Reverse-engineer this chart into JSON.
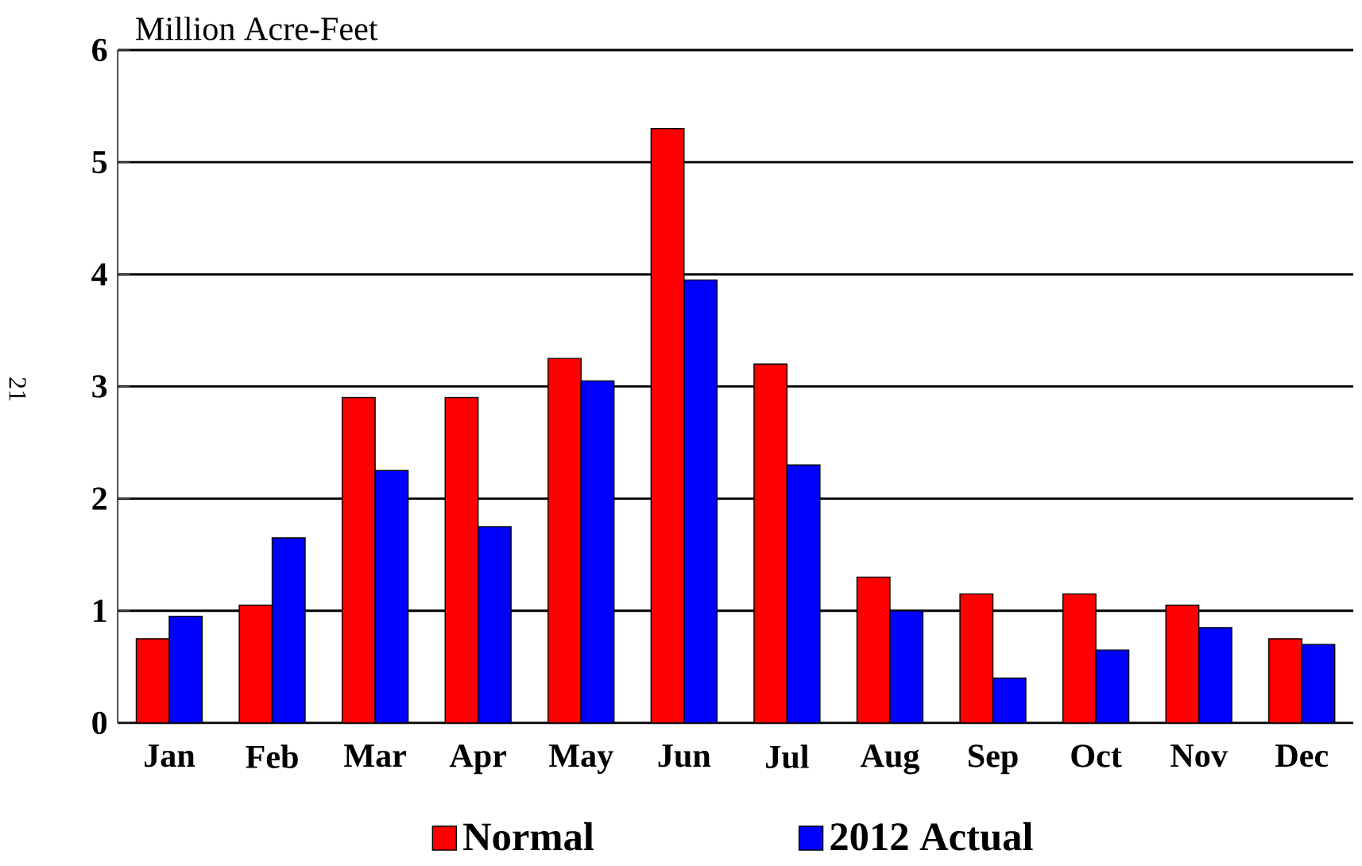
{
  "chart_data": {
    "type": "bar",
    "ylabel": "Million Acre-Feet",
    "categories": [
      "Jan",
      "Feb",
      "Mar",
      "Apr",
      "May",
      "Jun",
      "Jul",
      "Aug",
      "Sep",
      "Oct",
      "Nov",
      "Dec"
    ],
    "series": [
      {
        "name": "Normal",
        "color": "#ff0000",
        "values": [
          0.75,
          1.05,
          2.9,
          2.9,
          3.25,
          5.3,
          3.2,
          1.3,
          1.15,
          1.15,
          1.05,
          0.75
        ]
      },
      {
        "name": "2012 Actual",
        "color": "#0000ff",
        "values": [
          0.95,
          1.65,
          2.25,
          1.75,
          3.05,
          3.95,
          2.3,
          1.0,
          0.4,
          0.65,
          0.85,
          0.7
        ]
      }
    ],
    "ylim": [
      0,
      6
    ],
    "yticks": [
      0,
      1,
      2,
      3,
      4,
      5,
      6
    ],
    "grid": "y",
    "legend": "bottom",
    "annotations": [
      "21"
    ]
  }
}
